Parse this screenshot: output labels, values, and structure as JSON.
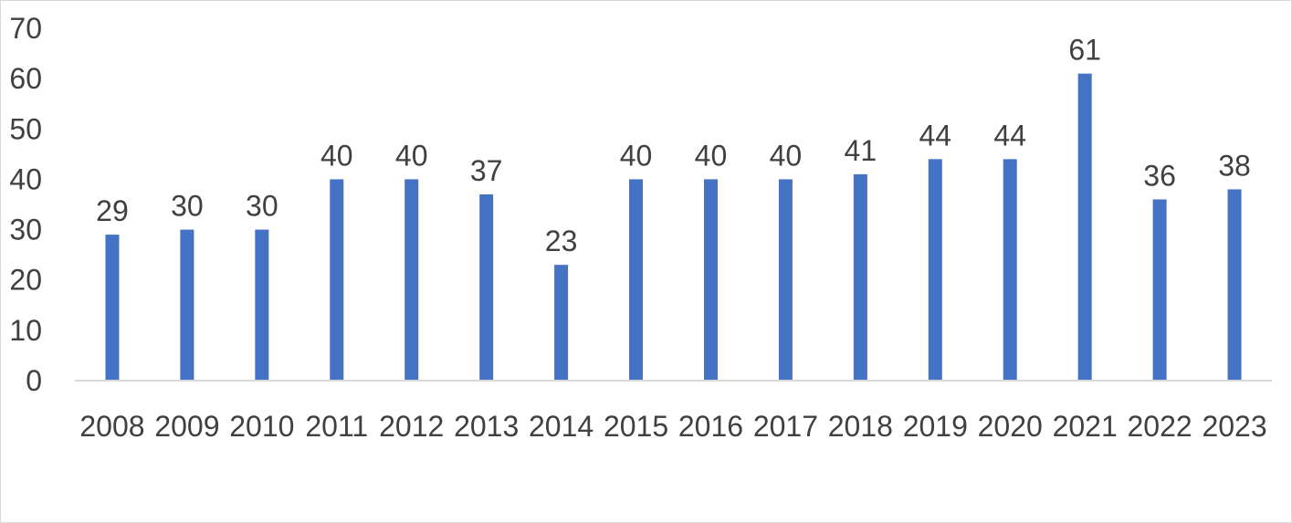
{
  "chart_data": {
    "type": "bar",
    "categories": [
      "2008",
      "2009",
      "2010",
      "2011",
      "2012",
      "2013",
      "2014",
      "2015",
      "2016",
      "2017",
      "2018",
      "2019",
      "2020",
      "2021",
      "2022",
      "2023"
    ],
    "values": [
      29,
      30,
      30,
      40,
      40,
      37,
      23,
      40,
      40,
      40,
      41,
      44,
      44,
      61,
      36,
      38
    ],
    "data_labels": [
      "29",
      "30",
      "30",
      "40",
      "40",
      "37",
      "23",
      "40",
      "40",
      "40",
      "41",
      "44",
      "44",
      "61",
      "36",
      "38"
    ],
    "y_ticks": [
      "0",
      "10",
      "20",
      "30",
      "40",
      "50",
      "60",
      "70"
    ],
    "ylim": [
      0,
      70
    ],
    "grid": false,
    "legend": "none",
    "bar_color": "#4472c4",
    "axis_color": "#d9d9d9",
    "text_color": "#404040"
  }
}
